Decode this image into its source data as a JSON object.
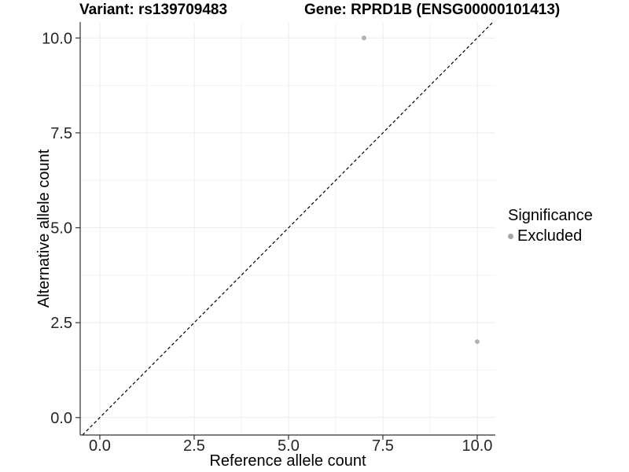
{
  "chart_data": {
    "type": "scatter",
    "title_left": "Variant: rs139709483",
    "title_right": "Gene: RPRD1B (ENSG00000101413)",
    "xlabel": "Reference allele count",
    "ylabel": "Alternative allele count",
    "xlim": [
      -0.52,
      10.48
    ],
    "ylim": [
      -0.46,
      10.42
    ],
    "x_ticks": {
      "values": [
        0,
        2.5,
        5,
        7.5,
        10
      ],
      "labels": [
        "0.0",
        "2.5",
        "5.0",
        "7.5",
        "10.0"
      ]
    },
    "y_ticks": {
      "values": [
        0,
        2.5,
        5,
        7.5,
        10
      ],
      "labels": [
        "0.0",
        "2.5",
        "5.0",
        "7.5",
        "10.0"
      ]
    },
    "x_minor": [
      1.25,
      3.75,
      6.25,
      8.75
    ],
    "y_minor": [
      1.25,
      3.75,
      6.25,
      8.75
    ],
    "grid": {
      "major": true,
      "minor": true
    },
    "reference_line": {
      "type": "identity",
      "style": "dashed",
      "color": "#000000"
    },
    "series": [
      {
        "name": "Excluded",
        "color": "#b3b3b3",
        "points": [
          [
            7,
            10
          ],
          [
            10,
            2
          ]
        ],
        "point_radius": 3
      }
    ],
    "legend": {
      "title": "Significance",
      "position": "right",
      "entries": [
        {
          "label": "Excluded",
          "color": "#a6a6a6"
        }
      ]
    },
    "colors": {
      "background": "#ffffff",
      "grid_major": "#ececec",
      "grid_minor": "#f4f4f4",
      "axis_line": "#333333",
      "tick_mark": "#333333",
      "tick_label": "#262626",
      "axis_title": "#000000"
    }
  }
}
